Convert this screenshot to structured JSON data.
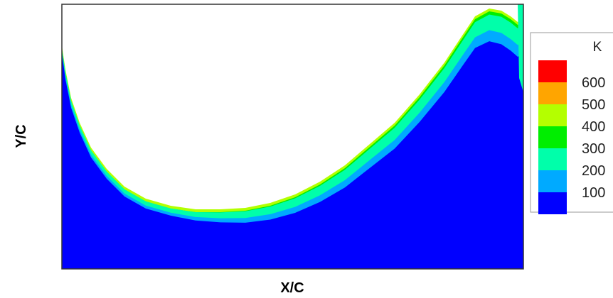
{
  "chart_data": {
    "type": "contour",
    "title": "",
    "xlabel": "X/C",
    "ylabel": "Y/C",
    "legend": {
      "title": "K",
      "placement": "right",
      "levels": [
        {
          "label": "600",
          "color": "#ff0000"
        },
        {
          "label": "500",
          "color": "#ffa500"
        },
        {
          "label": "400",
          "color": "#b4ff00"
        },
        {
          "label": "300",
          "color": "#00ee00"
        },
        {
          "label": "200",
          "color": "#00ffaa"
        },
        {
          "label": "100",
          "color": "#00aaff"
        },
        {
          "label": "",
          "color": "#0000ff"
        }
      ]
    },
    "bands_visible": [
      "#0000ff",
      "#00aaff",
      "#00ffaa",
      "#00ee00",
      "#b4ff00"
    ],
    "grid": false
  }
}
